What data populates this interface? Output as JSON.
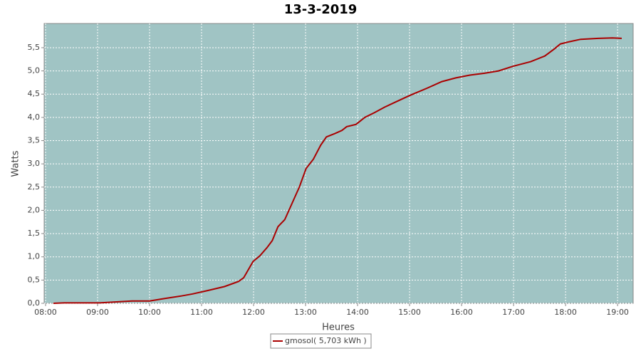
{
  "chart_data": {
    "type": "line",
    "title": "13-3-2019",
    "x_label": "Heures",
    "y_label": "Watts",
    "grid": true,
    "legend": "bottom",
    "xlim": [
      7.973,
      19.3
    ],
    "ylim": [
      0,
      6.02
    ],
    "xticks": [
      {
        "value": 8,
        "label": "08:00"
      },
      {
        "value": 9,
        "label": "09:00"
      },
      {
        "value": 10,
        "label": "10:00"
      },
      {
        "value": 11,
        "label": "11:00"
      },
      {
        "value": 12,
        "label": "12:00"
      },
      {
        "value": 13,
        "label": "13:00"
      },
      {
        "value": 14,
        "label": "14:00"
      },
      {
        "value": 15,
        "label": "15:00"
      },
      {
        "value": 16,
        "label": "16:00"
      },
      {
        "value": 17,
        "label": "17:00"
      },
      {
        "value": 18,
        "label": "18:00"
      },
      {
        "value": 19,
        "label": "19:00"
      }
    ],
    "yticks": [
      {
        "value": 0,
        "label": "0,0"
      },
      {
        "value": 0.5,
        "label": "0,5"
      },
      {
        "value": 1,
        "label": "1,0"
      },
      {
        "value": 1.5,
        "label": "1,5"
      },
      {
        "value": 2,
        "label": "2,0"
      },
      {
        "value": 2.5,
        "label": "2,5"
      },
      {
        "value": 3,
        "label": "3,0"
      },
      {
        "value": 3.5,
        "label": "3,5"
      },
      {
        "value": 4,
        "label": "4,0"
      },
      {
        "value": 4.5,
        "label": "4,5"
      },
      {
        "value": 5,
        "label": "5,0"
      },
      {
        "value": 5.5,
        "label": "5,5"
      }
    ],
    "series": [
      {
        "name": "gmosol( 5,703 kWh )",
        "color": "#aa0000",
        "x": [
          8.15,
          8.36,
          9.04,
          9.66,
          10.0,
          10.27,
          10.62,
          10.82,
          11.1,
          11.44,
          11.71,
          11.81,
          11.99,
          12.12,
          12.26,
          12.36,
          12.47,
          12.6,
          12.74,
          12.88,
          13.01,
          13.15,
          13.29,
          13.4,
          13.56,
          13.7,
          13.79,
          13.97,
          14.14,
          14.32,
          14.52,
          14.73,
          15.0,
          15.34,
          15.62,
          15.89,
          16.16,
          16.44,
          16.71,
          16.99,
          17.33,
          17.6,
          17.78,
          17.9,
          18.08,
          18.29,
          18.63,
          18.9,
          19.08
        ],
        "values": [
          0,
          0.01,
          0.01,
          0.05,
          0.05,
          0.1,
          0.16,
          0.2,
          0.27,
          0.36,
          0.47,
          0.55,
          0.9,
          1.02,
          1.2,
          1.35,
          1.65,
          1.8,
          2.15,
          2.5,
          2.9,
          3.1,
          3.4,
          3.58,
          3.65,
          3.72,
          3.8,
          3.85,
          4.0,
          4.1,
          4.22,
          4.33,
          4.47,
          4.63,
          4.77,
          4.85,
          4.91,
          4.95,
          5.0,
          5.1,
          5.2,
          5.32,
          5.47,
          5.58,
          5.63,
          5.68,
          5.7,
          5.71,
          5.7
        ]
      }
    ]
  }
}
